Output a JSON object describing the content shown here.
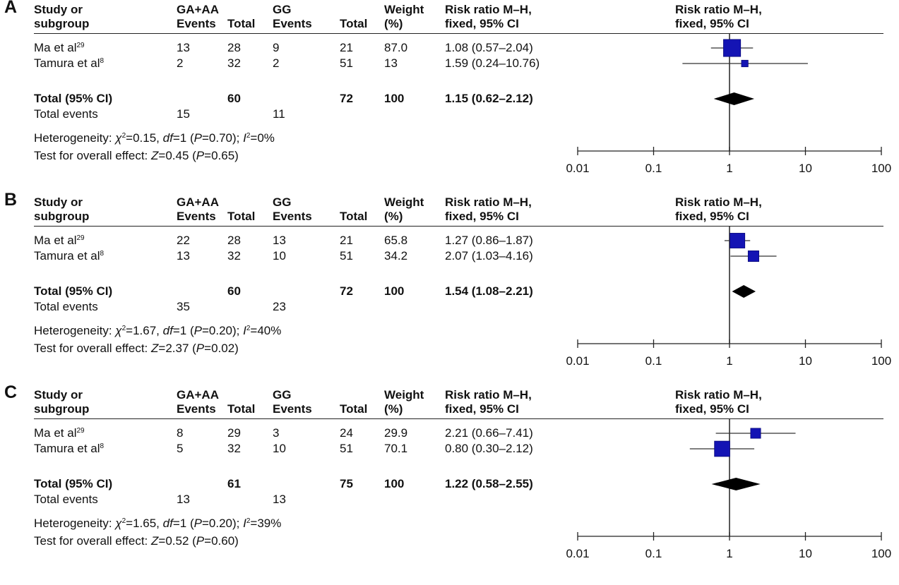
{
  "chart_data": [
    {
      "panel": "A",
      "type": "forest",
      "headers": {
        "study": [
          "Study or",
          "subgroup"
        ],
        "group1": "GA+AA",
        "group2": "GG",
        "events": "Events",
        "total": "Total",
        "weight": [
          "Weight",
          "(%)"
        ],
        "rr": [
          "Risk ratio M–H,",
          "fixed, 95% CI"
        ],
        "plot": [
          "Risk ratio M–H,",
          "fixed, 95% CI"
        ]
      },
      "studies": [
        {
          "name": "Ma et al",
          "ref": "29",
          "ev1": "13",
          "tot1": "28",
          "ev2": "9",
          "tot2": "21",
          "weight": "87.0",
          "ci_text": "1.08 (0.57–2.04)",
          "rr": 1.08,
          "lo": 0.57,
          "hi": 2.04,
          "w": 87.0
        },
        {
          "name": "Tamura et al",
          "ref": "8",
          "ev1": "2",
          "tot1": "32",
          "ev2": "2",
          "tot2": "51",
          "weight": "13",
          "ci_text": "1.59 (0.24–10.76)",
          "rr": 1.59,
          "lo": 0.24,
          "hi": 10.76,
          "w": 13.0
        }
      ],
      "total": {
        "label": "Total (95% CI)",
        "tot1": "60",
        "tot2": "72",
        "weight": "100",
        "ci_text": "1.15 (0.62–2.12)",
        "rr": 1.15,
        "lo": 0.62,
        "hi": 2.12
      },
      "total_events": {
        "label": "Total events",
        "ev1": "15",
        "ev2": "11"
      },
      "heterogeneity": {
        "chi2": "0.15",
        "df": "1",
        "p": "0.70",
        "i2": "0%"
      },
      "overall": {
        "z": "0.45",
        "p": "0.65"
      },
      "x_ticks": [
        "0.01",
        "0.1",
        "1",
        "10",
        "100"
      ],
      "x_scale": "log"
    },
    {
      "panel": "B",
      "type": "forest",
      "headers": {
        "study": [
          "Study or",
          "subgroup"
        ],
        "group1": "GA+AA",
        "group2": "GG",
        "events": "Events",
        "total": "Total",
        "weight": [
          "Weight",
          "(%)"
        ],
        "rr": [
          "Risk ratio M–H,",
          "fixed, 95% CI"
        ],
        "plot": [
          "Risk ratio M–H,",
          "fixed, 95% CI"
        ]
      },
      "studies": [
        {
          "name": "Ma et al",
          "ref": "29",
          "ev1": "22",
          "tot1": "28",
          "ev2": "13",
          "tot2": "21",
          "weight": "65.8",
          "ci_text": "1.27 (0.86–1.87)",
          "rr": 1.27,
          "lo": 0.86,
          "hi": 1.87,
          "w": 65.8
        },
        {
          "name": "Tamura et al",
          "ref": "8",
          "ev1": "13",
          "tot1": "32",
          "ev2": "10",
          "tot2": "51",
          "weight": "34.2",
          "ci_text": "2.07 (1.03–4.16)",
          "rr": 2.07,
          "lo": 1.03,
          "hi": 4.16,
          "w": 34.2
        }
      ],
      "total": {
        "label": "Total (95% CI)",
        "tot1": "60",
        "tot2": "72",
        "weight": "100",
        "ci_text": "1.54 (1.08–2.21)",
        "rr": 1.54,
        "lo": 1.08,
        "hi": 2.21
      },
      "total_events": {
        "label": "Total events",
        "ev1": "35",
        "ev2": "23"
      },
      "heterogeneity": {
        "chi2": "1.67",
        "df": "1",
        "p": "0.20",
        "i2": "40%"
      },
      "overall": {
        "z": "2.37",
        "p": "0.02"
      },
      "x_ticks": [
        "0.01",
        "0.1",
        "1",
        "10",
        "100"
      ],
      "x_scale": "log"
    },
    {
      "panel": "C",
      "type": "forest",
      "headers": {
        "study": [
          "Study or",
          "subgroup"
        ],
        "group1": "GA+AA",
        "group2": "GG",
        "events": "Events",
        "total": "Total",
        "weight": [
          "Weight",
          "(%)"
        ],
        "rr": [
          "Risk ratio M–H,",
          "fixed, 95% CI"
        ],
        "plot": [
          "Risk ratio M–H,",
          "fixed, 95% CI"
        ]
      },
      "studies": [
        {
          "name": "Ma et al",
          "ref": "29",
          "ev1": "8",
          "tot1": "29",
          "ev2": "3",
          "tot2": "24",
          "weight": "29.9",
          "ci_text": "2.21 (0.66–7.41)",
          "rr": 2.21,
          "lo": 0.66,
          "hi": 7.41,
          "w": 29.9
        },
        {
          "name": "Tamura et al",
          "ref": "8",
          "ev1": "5",
          "tot1": "32",
          "ev2": "10",
          "tot2": "51",
          "weight": "70.1",
          "ci_text": "0.80 (0.30–2.12)",
          "rr": 0.8,
          "lo": 0.3,
          "hi": 2.12,
          "w": 70.1
        }
      ],
      "total": {
        "label": "Total (95% CI)",
        "tot1": "61",
        "tot2": "75",
        "weight": "100",
        "ci_text": "1.22 (0.58–2.55)",
        "rr": 1.22,
        "lo": 0.58,
        "hi": 2.55
      },
      "total_events": {
        "label": "Total events",
        "ev1": "13",
        "ev2": "13"
      },
      "heterogeneity": {
        "chi2": "1.65",
        "df": "1",
        "p": "0.20",
        "i2": "39%"
      },
      "overall": {
        "z": "0.52",
        "p": "0.60"
      },
      "x_ticks": [
        "0.01",
        "0.1",
        "1",
        "10",
        "100"
      ],
      "x_scale": "log"
    }
  ],
  "labels": {
    "heterogeneity_prefix": "Heterogeneity: ",
    "chi": "χ",
    "df": "df",
    "p": "P",
    "i": "I",
    "overall_prefix": "Test for overall effect: ",
    "z": "Z"
  },
  "colors": {
    "study_box": "#1414b4",
    "total_diamond": "#000000",
    "axis": "#222222"
  }
}
